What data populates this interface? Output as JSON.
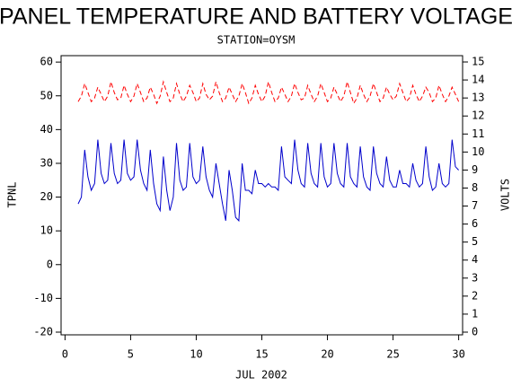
{
  "chart_data": {
    "type": "line",
    "title": "PANEL TEMPERATURE AND BATTERY VOLTAGE",
    "subtitle": "STATION=OYSM",
    "x_label": "JUL 2002",
    "y_label": "TPNL",
    "y2_label": "VOLTS",
    "xlim": [
      -0.3,
      30.3
    ],
    "xticks": [
      0,
      5,
      10,
      15,
      20,
      25,
      30
    ],
    "ylim": [
      -20.8,
      61.9
    ],
    "yticks": [
      -20,
      -10,
      0,
      10,
      20,
      30,
      40,
      50,
      60
    ],
    "y2lim": [
      -0.15,
      15.35
    ],
    "y2ticks": [
      0,
      1,
      2,
      3,
      4,
      5,
      6,
      7,
      8,
      9,
      10,
      11,
      12,
      13,
      14,
      15
    ],
    "x": [
      1,
      1.25,
      1.5,
      1.75,
      2,
      2.25,
      2.5,
      2.75,
      3,
      3.25,
      3.5,
      3.75,
      4,
      4.25,
      4.5,
      4.75,
      5,
      5.25,
      5.5,
      5.75,
      6,
      6.25,
      6.5,
      6.75,
      7,
      7.25,
      7.5,
      7.75,
      8,
      8.25,
      8.5,
      8.75,
      9,
      9.25,
      9.5,
      9.75,
      10,
      10.25,
      10.5,
      10.75,
      11,
      11.25,
      11.5,
      11.75,
      12,
      12.25,
      12.5,
      12.75,
      13,
      13.25,
      13.5,
      13.75,
      14,
      14.25,
      14.5,
      14.75,
      15,
      15.25,
      15.5,
      15.75,
      16,
      16.25,
      16.5,
      16.75,
      17,
      17.25,
      17.5,
      17.75,
      18,
      18.25,
      18.5,
      18.75,
      19,
      19.25,
      19.5,
      19.75,
      20,
      20.25,
      20.5,
      20.75,
      21,
      21.25,
      21.5,
      21.75,
      22,
      22.25,
      22.5,
      22.75,
      23,
      23.25,
      23.5,
      23.75,
      24,
      24.25,
      24.5,
      24.75,
      25,
      25.25,
      25.5,
      25.75,
      26,
      26.25,
      26.5,
      26.75,
      27,
      27.25,
      27.5,
      27.75,
      28,
      28.25,
      28.5,
      28.75,
      29,
      29.25,
      29.5,
      29.75,
      30
    ],
    "series": [
      {
        "name": "TPNL",
        "color": "#0000cc",
        "linestyle": "solid",
        "values": [
          18,
          20,
          34,
          26,
          22,
          24,
          37,
          27,
          24,
          25,
          36,
          27,
          24,
          25,
          37,
          27,
          25,
          26,
          37,
          28,
          24,
          22,
          34,
          24,
          18,
          16,
          32,
          22,
          16,
          20,
          36,
          25,
          22,
          23,
          36,
          26,
          24,
          25,
          35,
          26,
          22,
          20,
          30,
          24,
          18,
          13,
          28,
          22,
          14,
          13,
          30,
          22,
          22,
          21,
          28,
          24,
          24,
          23,
          24,
          23,
          23,
          22,
          35,
          26,
          25,
          24,
          37,
          28,
          24,
          23,
          36,
          27,
          24,
          23,
          36,
          26,
          23,
          24,
          36,
          27,
          24,
          23,
          36,
          26,
          24,
          23,
          35,
          26,
          23,
          22,
          35,
          27,
          24,
          23,
          32,
          25,
          23,
          23,
          28,
          24,
          24,
          23,
          30,
          25,
          23,
          24,
          35,
          26,
          22,
          23,
          30,
          24,
          23,
          24,
          37,
          29,
          28
        ]
      },
      {
        "name": "VOLTS",
        "color": "#ff0000",
        "linestyle": "dashed",
        "axis": "y2",
        "values": [
          12.8,
          13.1,
          13.8,
          13.3,
          12.8,
          13.0,
          13.6,
          13.2,
          12.8,
          13.1,
          13.9,
          13.3,
          12.9,
          13.0,
          13.7,
          13.2,
          12.8,
          13.1,
          13.8,
          13.3,
          12.8,
          13.0,
          13.6,
          13.2,
          12.7,
          13.1,
          13.9,
          13.3,
          12.8,
          13.0,
          13.8,
          13.2,
          12.8,
          13.1,
          13.7,
          13.3,
          12.8,
          13.0,
          13.8,
          13.2,
          12.9,
          13.1,
          13.9,
          13.3,
          12.8,
          13.0,
          13.6,
          13.2,
          12.8,
          13.1,
          13.8,
          13.3,
          12.7,
          13.0,
          13.7,
          13.2,
          12.8,
          13.1,
          13.9,
          13.3,
          12.8,
          13.0,
          13.6,
          13.2,
          12.8,
          13.1,
          13.8,
          13.3,
          12.9,
          13.0,
          13.7,
          13.2,
          12.8,
          13.1,
          13.8,
          13.3,
          12.8,
          13.0,
          13.6,
          13.2,
          12.8,
          13.1,
          13.9,
          13.3,
          12.7,
          13.0,
          13.7,
          13.2,
          12.8,
          13.1,
          13.8,
          13.3,
          12.8,
          13.0,
          13.6,
          13.2,
          12.9,
          13.1,
          13.8,
          13.3,
          12.8,
          13.0,
          13.7,
          13.2,
          12.8,
          13.1,
          13.6,
          13.3,
          12.8,
          13.0,
          13.7,
          13.2,
          12.8,
          13.1,
          13.6,
          13.2,
          12.8
        ]
      }
    ]
  }
}
